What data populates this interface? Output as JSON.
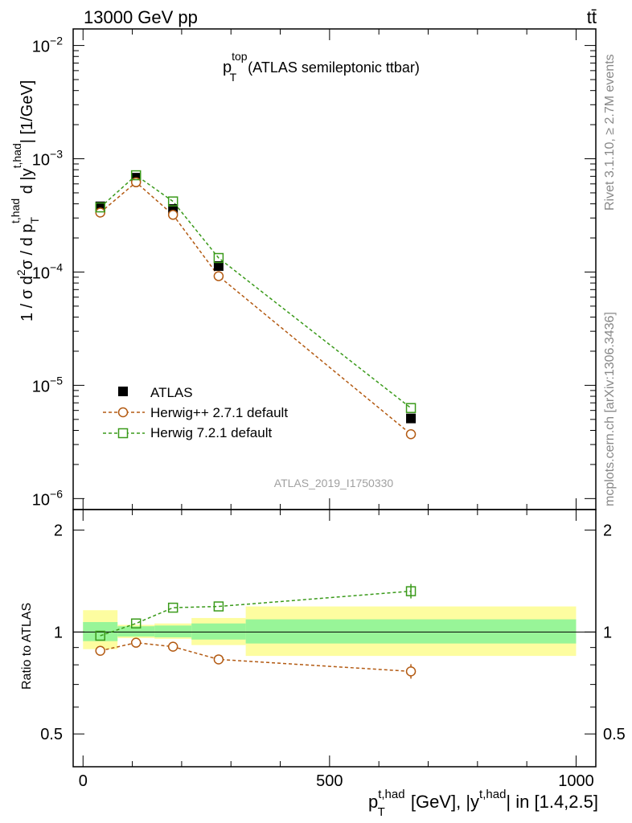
{
  "header": {
    "energy_label": "13000 GeV pp",
    "process_label": "tt̄",
    "plot_title_main": "p",
    "plot_title_sup": "top",
    "plot_title_sub": "T",
    "plot_title_rest": "(ATLAS semileptonic ttbar)",
    "analysis_id": "ATLAS_2019_I1750330"
  },
  "side_labels": {
    "rivet": "Rivet 3.1.10, ≥ 2.7M events",
    "mcplots": "mcplots.cern.ch [arXiv:1306.3436]"
  },
  "axes": {
    "main_ylabel": {
      "p1": "1 / σ d",
      "sup2": "2",
      "p2": "σ / d p",
      "subT": "T",
      "sup_thad": "t,had",
      "p3": " d |y",
      "sup_thad2": "t,had",
      "p4": "| [1/GeV]"
    },
    "ratio_ylabel": "Ratio to ATLAS",
    "xlabel": {
      "p1": "p",
      "supT": "t,had",
      "subT": "T",
      "p2": " [GeV], |y",
      "sup_y": "t,had",
      "p3": "| in [1.4,2.5]"
    },
    "main_yticks": [
      {
        "base": "10",
        "exp": "−2",
        "value": 0.01
      },
      {
        "base": "10",
        "exp": "−3",
        "value": 0.001
      },
      {
        "base": "10",
        "exp": "−4",
        "value": 0.0001
      },
      {
        "base": "10",
        "exp": "−5",
        "value": 1e-05
      },
      {
        "base": "10",
        "exp": "−6",
        "value": 1e-06
      }
    ],
    "ratio_yticks": [
      {
        "label": "2",
        "value": 2
      },
      {
        "label": "1",
        "value": 1
      },
      {
        "label": "0.5",
        "value": 0.5
      }
    ],
    "xticks": [
      {
        "label": "0",
        "value": 0
      },
      {
        "label": "500",
        "value": 500
      },
      {
        "label": "1000",
        "value": 1000
      }
    ]
  },
  "legend": [
    {
      "label": "ATLAS",
      "marker": "filled-square",
      "color": "#000000"
    },
    {
      "label": "Herwig++ 2.7.1 default",
      "marker": "open-circle",
      "color": "#b35a12"
    },
    {
      "label": "Herwig 7.2.1 default",
      "marker": "open-square",
      "color": "#3a9a1a"
    }
  ],
  "chart_data": {
    "type": "line",
    "title": "p_T^top (ATLAS semileptonic ttbar)",
    "xlim": [
      -20,
      1040
    ],
    "main_ylim": [
      8e-07,
      0.014
    ],
    "main_yscale": "log",
    "ratio_ylim": [
      0.4,
      2.3
    ],
    "ratio_yscale": "log",
    "bin_edges": [
      0,
      70,
      145,
      220,
      330,
      1000
    ],
    "x": [
      35,
      107.5,
      182.5,
      275,
      665
    ],
    "series": [
      {
        "name": "ATLAS",
        "color": "#000000",
        "marker": "filled-square",
        "values": [
          0.00038,
          0.00068,
          0.00036,
          0.000113,
          5.1e-06
        ]
      },
      {
        "name": "Herwig++ 2.7.1 default",
        "color": "#b35a12",
        "marker": "open-circle",
        "values": [
          0.000335,
          0.00062,
          0.00032,
          9.2e-05,
          3.7e-06
        ]
      },
      {
        "name": "Herwig 7.2.1 default",
        "color": "#3a9a1a",
        "marker": "open-square",
        "values": [
          0.000372,
          0.000715,
          0.00042,
          0.000133,
          6.3e-06
        ]
      }
    ],
    "ratio_series": [
      {
        "name": "Herwig++ 2.7.1 default",
        "color": "#b35a12",
        "marker": "open-circle",
        "values": [
          0.88,
          0.93,
          0.905,
          0.83,
          0.765
        ]
      },
      {
        "name": "Herwig 7.2.1 default",
        "color": "#3a9a1a",
        "marker": "open-square",
        "values": [
          0.975,
          1.06,
          1.18,
          1.19,
          1.32
        ]
      }
    ],
    "ratio_bands": [
      {
        "green": [
          0.94,
          1.07
        ],
        "yellow": [
          0.89,
          1.16
        ]
      },
      {
        "green": [
          0.97,
          1.04
        ],
        "yellow": [
          0.96,
          1.05
        ]
      },
      {
        "green": [
          0.965,
          1.045
        ],
        "yellow": [
          0.955,
          1.06
        ]
      },
      {
        "green": [
          0.95,
          1.06
        ],
        "yellow": [
          0.915,
          1.1
        ]
      },
      {
        "green": [
          0.925,
          1.09
        ],
        "yellow": [
          0.85,
          1.19
        ]
      }
    ],
    "band_colors": {
      "green": "#98f598",
      "yellow": "#fdfda0"
    },
    "reference_line": 1
  }
}
